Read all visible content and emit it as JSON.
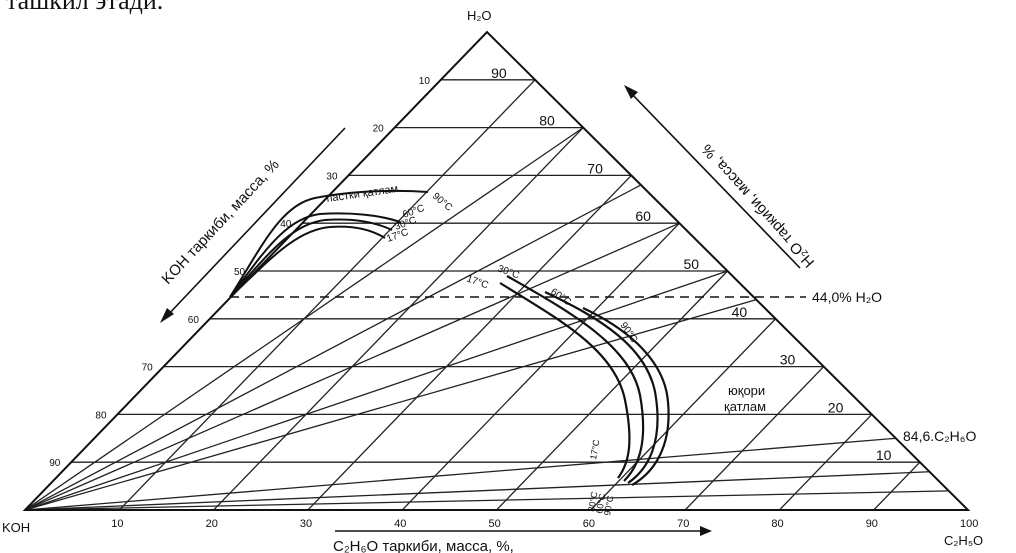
{
  "caption_fragment": "ташкил этади.",
  "vertices": {
    "top": "H₂O",
    "left": "KOH",
    "right": "C₂H₅O"
  },
  "axes": {
    "left": {
      "label": "KOH таркиби, масса, %"
    },
    "right": {
      "label": "H₂O таркиби, масса, %"
    },
    "bottom": {
      "label": "C₂H₆O таркиби, масса, %,"
    }
  },
  "ticks": {
    "bottom": [
      "10",
      "20",
      "30",
      "40",
      "50",
      "60",
      "70",
      "80",
      "90",
      "100"
    ],
    "right_inner": [
      "90",
      "80",
      "70",
      "60",
      "50",
      "40",
      "30",
      "20",
      "10"
    ],
    "left": [
      "10",
      "20",
      "30",
      "40",
      "50",
      "60",
      "70",
      "80",
      "90"
    ]
  },
  "reference_lines": {
    "water": "44,0% H₂O",
    "ethanol": "84,6.C₂H₆O"
  },
  "regions": {
    "lower_layer": "пастки қатлам",
    "upper_layer_line1": "юқори",
    "upper_layer_line2": "қатлам"
  },
  "temperatures_lower": [
    "90°C",
    "60°C",
    "30°C",
    "17°C"
  ],
  "temperatures_upper": [
    "30°C",
    "17°C",
    "60°C",
    "90°C"
  ],
  "temperatures_bottom": [
    "17°C",
    "30°C",
    "60°C",
    "90°C"
  ]
}
